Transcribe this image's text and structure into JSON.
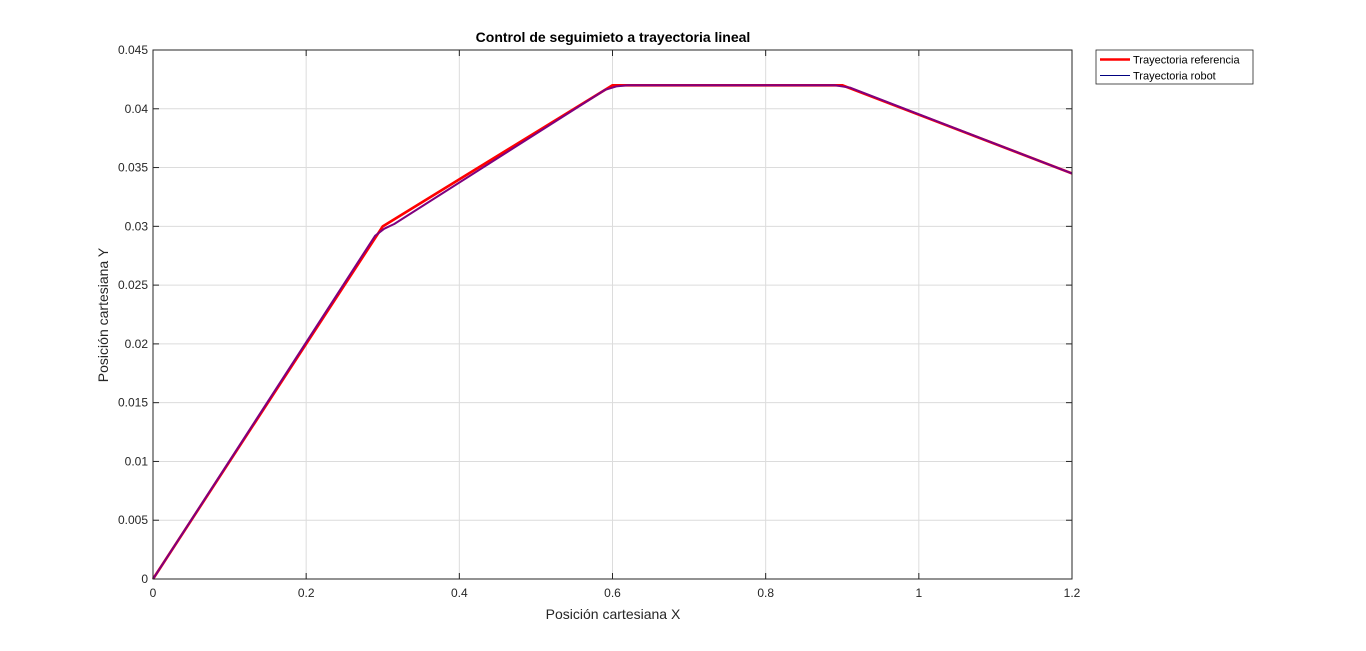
{
  "chart_data": {
    "type": "line",
    "title": "Control de seguimieto a trayectoria lineal",
    "xlabel": "Posición cartesiana X",
    "ylabel": "Posición cartesiana Y",
    "xlim": [
      0,
      1.2
    ],
    "ylim": [
      0,
      0.045
    ],
    "x_ticks": [
      {
        "value": 0,
        "label": "0"
      },
      {
        "value": 0.2,
        "label": "0.2"
      },
      {
        "value": 0.4,
        "label": "0.4"
      },
      {
        "value": 0.6,
        "label": "0.6"
      },
      {
        "value": 0.8,
        "label": "0.8"
      },
      {
        "value": 1.0,
        "label": "1"
      },
      {
        "value": 1.2,
        "label": "1.2"
      }
    ],
    "y_ticks": [
      {
        "value": 0,
        "label": "0"
      },
      {
        "value": 0.005,
        "label": "0.005"
      },
      {
        "value": 0.01,
        "label": "0.01"
      },
      {
        "value": 0.015,
        "label": "0.015"
      },
      {
        "value": 0.02,
        "label": "0.02"
      },
      {
        "value": 0.025,
        "label": "0.025"
      },
      {
        "value": 0.03,
        "label": "0.03"
      },
      {
        "value": 0.035,
        "label": "0.035"
      },
      {
        "value": 0.04,
        "label": "0.04"
      },
      {
        "value": 0.045,
        "label": "0.045"
      }
    ],
    "grid": true,
    "legend_position": "outside-top-right",
    "series": [
      {
        "name": "Trayectoria referencia",
        "color": "#ff0000",
        "x": [
          0,
          0.3,
          0.6,
          0.9,
          1.2
        ],
        "y": [
          0,
          0.03,
          0.042,
          0.042,
          0.0345
        ]
      },
      {
        "name": "Trayectoria robot",
        "color": "#000080",
        "x": [
          0,
          0.29,
          0.302,
          0.315,
          0.59,
          0.605,
          0.62,
          0.89,
          0.9,
          0.91,
          1.2
        ],
        "y": [
          0,
          0.0292,
          0.0298,
          0.0302,
          0.0416,
          0.0419,
          0.042,
          0.042,
          0.0419,
          0.0418,
          0.0345
        ]
      }
    ],
    "overlap_color": "#7f007f"
  }
}
